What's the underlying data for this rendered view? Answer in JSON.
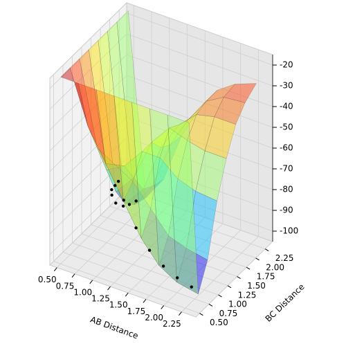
{
  "chart_data": {
    "type": "surface3d",
    "xlabel": "AB Distance",
    "ylabel": "BC Distance",
    "xlim": [
      0.4,
      2.45
    ],
    "ylim": [
      0.4,
      2.45
    ],
    "zlim": [
      -105,
      -15
    ],
    "xticks": [
      {
        "value": 0.5,
        "label": "0.50"
      },
      {
        "value": 0.75,
        "label": "0.75"
      },
      {
        "value": 1.0,
        "label": "1.00"
      },
      {
        "value": 1.25,
        "label": "1.25"
      },
      {
        "value": 1.5,
        "label": "1.50"
      },
      {
        "value": 1.75,
        "label": "1.75"
      },
      {
        "value": 2.0,
        "label": "2.00"
      },
      {
        "value": 2.25,
        "label": "2.25"
      }
    ],
    "yticks": [
      {
        "value": 0.5,
        "label": "0.50"
      },
      {
        "value": 0.75,
        "label": "0.75"
      },
      {
        "value": 1.0,
        "label": "1.00"
      },
      {
        "value": 1.25,
        "label": "1.25"
      },
      {
        "value": 1.5,
        "label": "1.50"
      },
      {
        "value": 1.75,
        "label": "1.75"
      },
      {
        "value": 2.0,
        "label": "2.00"
      },
      {
        "value": 2.25,
        "label": "2.25"
      }
    ],
    "zticks": [
      -100,
      -90,
      -80,
      -70,
      -60,
      -50,
      -40,
      -30,
      -20
    ],
    "grid": true,
    "colormap": "jet",
    "x": [
      0.5,
      0.75,
      1.0,
      1.25,
      1.5,
      1.75,
      2.0,
      2.3
    ],
    "y": [
      0.5,
      0.75,
      1.0,
      1.25,
      1.5,
      1.75,
      2.0,
      2.3
    ],
    "z": [
      [
        -15,
        -15,
        -15,
        -15,
        -15,
        -15,
        -15,
        -15
      ],
      [
        -15,
        -40,
        -55,
        -70,
        -85,
        -95,
        -100,
        -102
      ],
      [
        -15,
        -55,
        -60,
        -65,
        -75,
        -85,
        -88,
        -90
      ],
      [
        -15,
        -70,
        -65,
        -55,
        -55,
        -62,
        -65,
        -66
      ],
      [
        -15,
        -85,
        -75,
        -55,
        -45,
        -48,
        -50,
        -50
      ],
      [
        -15,
        -95,
        -85,
        -62,
        -48,
        -40,
        -38,
        -38
      ],
      [
        -15,
        -100,
        -88,
        -65,
        -50,
        -38,
        -33,
        -32
      ],
      [
        -15,
        -102,
        -90,
        -66,
        -50,
        -38,
        -32,
        -28
      ]
    ],
    "points": {
      "color": "#000000",
      "x": [
        1.1,
        1.0,
        0.9,
        0.85,
        0.8,
        0.8,
        0.78,
        0.77,
        1.2,
        1.4,
        1.6,
        1.8,
        2.0,
        2.2
      ],
      "y": [
        0.9,
        1.0,
        1.1,
        1.2,
        1.4,
        1.6,
        1.8,
        2.0,
        0.85,
        0.8,
        0.78,
        0.77,
        0.76,
        0.76
      ],
      "z": [
        -65,
        -70,
        -75,
        -80,
        -88,
        -93,
        -96,
        -98,
        -72,
        -82,
        -90,
        -95,
        -98,
        -100
      ]
    }
  }
}
